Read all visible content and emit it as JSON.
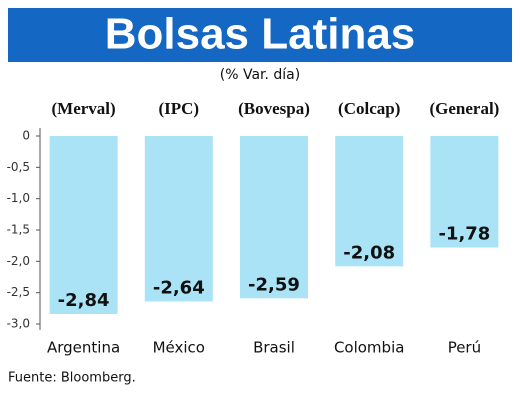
{
  "chart_data": {
    "type": "bar",
    "title": "Bolsas Latinas",
    "subtitle": "(% Var. día)",
    "categories": [
      "Argentina",
      "México",
      "Brasil",
      "Colombia",
      "Perú"
    ],
    "index_names": [
      "(Merval)",
      "(IPC)",
      "(Bovespa)",
      "(Colcap)",
      "(General)"
    ],
    "values": [
      -2.84,
      -2.64,
      -2.59,
      -2.08,
      -1.78
    ],
    "value_labels": [
      "-2,84",
      "-2,64",
      "-2,59",
      "-2,08",
      "-1,78"
    ],
    "color": "#a9e3f5",
    "ylim": [
      -3,
      0
    ],
    "yticks": [
      0,
      {
        "value": -0.5,
        "label": "-0,5"
      },
      {
        "value": -1,
        "label": "-1,0"
      },
      {
        "value": -1.5,
        "label": "-1,5"
      },
      {
        "value": -2,
        "label": "-2,0"
      },
      {
        "value": -2.5,
        "label": "-2,5"
      },
      {
        "value": -3,
        "label": "-3,0"
      }
    ],
    "source": "Fuente: Bloomberg."
  }
}
